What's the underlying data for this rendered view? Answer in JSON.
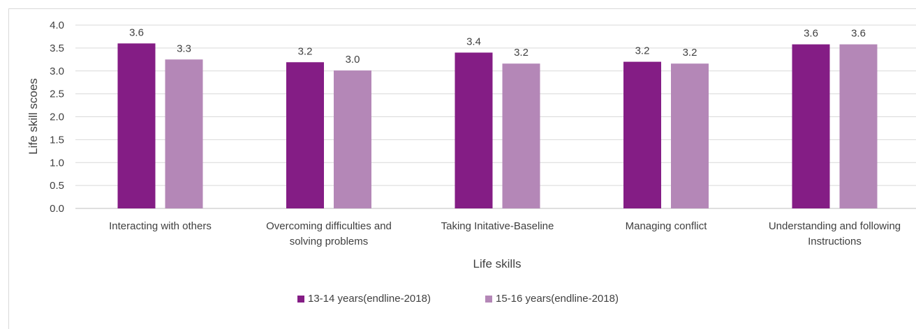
{
  "chart_data": {
    "type": "bar",
    "categories": [
      [
        "Interacting with others"
      ],
      [
        "Overcoming difficulties and",
        "solving problems"
      ],
      [
        "Taking Initative-Baseline"
      ],
      [
        "Managing conflict"
      ],
      [
        "Understanding and  following",
        "Instructions"
      ]
    ],
    "series": [
      {
        "name": "13-14 years(endline-2018)",
        "color": "#841d85",
        "values": [
          3.6,
          3.19,
          3.4,
          3.2,
          3.58
        ],
        "labels": [
          "3.6",
          "3.2",
          "3.4",
          "3.2",
          "3.6"
        ]
      },
      {
        "name": "15-16 years(endline-2018)",
        "color": "#b487b7",
        "values": [
          3.25,
          3.01,
          3.16,
          3.16,
          3.58
        ],
        "labels": [
          "3.3",
          "3.0",
          "3.2",
          "3.2",
          "3.6"
        ]
      }
    ],
    "y_ticks": [
      "0.0",
      "0.5",
      "1.0",
      "1.5",
      "2.0",
      "2.5",
      "3.0",
      "3.5",
      "4.0"
    ],
    "ylim": [
      0,
      4.0
    ],
    "xlabel": "Life skills",
    "ylabel": "Life skill scoes",
    "grid": true,
    "legend_position": "bottom"
  }
}
